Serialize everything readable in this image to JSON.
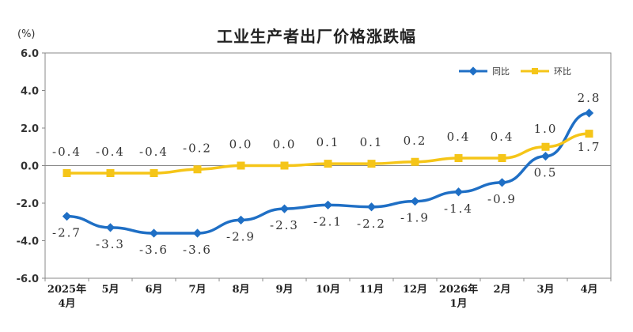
{
  "chart_data": {
    "type": "line",
    "title": "工业生产者出厂价格涨跌幅",
    "ylabel": "(%)",
    "ylim": [
      -6.0,
      6.0
    ],
    "yticks": [
      "6.0",
      "4.0",
      "2.0",
      "0.0",
      "-2.0",
      "-4.0",
      "-6.0"
    ],
    "ytick_values": [
      6,
      4,
      2,
      0,
      -2,
      -4,
      -6
    ],
    "categories": [
      [
        "2025年",
        "4月"
      ],
      [
        "5月"
      ],
      [
        "6月"
      ],
      [
        "7月"
      ],
      [
        "8月"
      ],
      [
        "9月"
      ],
      [
        "10月"
      ],
      [
        "11月"
      ],
      [
        "12月"
      ],
      [
        "2026年",
        "1月"
      ],
      [
        "2月"
      ],
      [
        "3月"
      ],
      [
        "4月"
      ]
    ],
    "series": [
      {
        "name": "同比",
        "color": "#1f6fc5",
        "marker": "diamond",
        "values": [
          -2.7,
          -3.3,
          -3.6,
          -3.6,
          -2.9,
          -2.3,
          -2.1,
          -2.2,
          -1.9,
          -1.4,
          -0.9,
          0.5,
          2.8
        ],
        "labels": [
          "-2.7",
          "-3.3",
          "-3.6",
          "-3.6",
          "-2.9",
          "-2.3",
          "-2.1",
          "-2.2",
          "-1.9",
          "-1.4",
          "-0.9",
          "0.5",
          "2.8"
        ]
      },
      {
        "name": "环比",
        "color": "#f5c518",
        "marker": "square",
        "values": [
          -0.4,
          -0.4,
          -0.4,
          -0.2,
          0.0,
          0.0,
          0.1,
          0.1,
          0.2,
          0.4,
          0.4,
          1.0,
          1.7
        ],
        "labels": [
          "-0.4",
          "-0.4",
          "-0.4",
          "-0.2",
          "0.0",
          "0.0",
          "0.1",
          "0.1",
          "0.2",
          "0.4",
          "0.4",
          "1.0",
          "1.7"
        ]
      }
    ],
    "grid": false,
    "legend_position": "top-right"
  }
}
